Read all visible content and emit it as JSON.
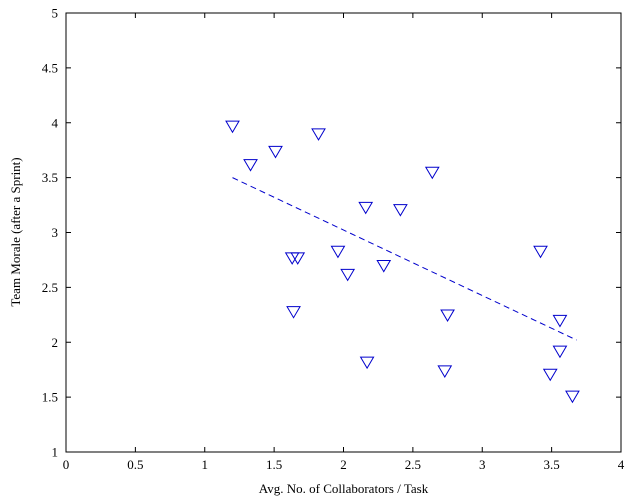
{
  "chart_data": {
    "type": "scatter",
    "xlabel": "Avg. No. of Collaborators / Task",
    "ylabel": "Team Morale (after a Sprint)",
    "xlim": [
      0,
      4
    ],
    "ylim": [
      1,
      5
    ],
    "x_ticks": [
      "0",
      "0.5",
      "1",
      "1.5",
      "2",
      "2.5",
      "3",
      "3.5",
      "4"
    ],
    "y_ticks": [
      "1",
      "1.5",
      "2",
      "2.5",
      "3",
      "3.5",
      "4",
      "4.5",
      "5"
    ],
    "grid": false,
    "legend": "none",
    "marker": "triangle-down",
    "marker_color": "#0000cc",
    "points": [
      {
        "x": 1.2,
        "y": 3.97
      },
      {
        "x": 1.33,
        "y": 3.62
      },
      {
        "x": 1.51,
        "y": 3.74
      },
      {
        "x": 1.63,
        "y": 2.77
      },
      {
        "x": 1.64,
        "y": 2.28
      },
      {
        "x": 1.67,
        "y": 2.77
      },
      {
        "x": 1.82,
        "y": 3.9
      },
      {
        "x": 1.96,
        "y": 2.83
      },
      {
        "x": 2.03,
        "y": 2.62
      },
      {
        "x": 2.16,
        "y": 3.23
      },
      {
        "x": 2.17,
        "y": 1.82
      },
      {
        "x": 2.29,
        "y": 2.7
      },
      {
        "x": 2.41,
        "y": 3.21
      },
      {
        "x": 2.64,
        "y": 3.55
      },
      {
        "x": 2.73,
        "y": 1.74
      },
      {
        "x": 2.75,
        "y": 2.25
      },
      {
        "x": 3.42,
        "y": 2.83
      },
      {
        "x": 3.49,
        "y": 1.71
      },
      {
        "x": 3.56,
        "y": 1.92
      },
      {
        "x": 3.56,
        "y": 2.2
      },
      {
        "x": 3.65,
        "y": 1.51
      }
    ],
    "trend_line": {
      "style": "dashed",
      "color": "#0000cc",
      "x": [
        1.2,
        3.68
      ],
      "y": [
        3.5,
        2.02
      ]
    }
  }
}
